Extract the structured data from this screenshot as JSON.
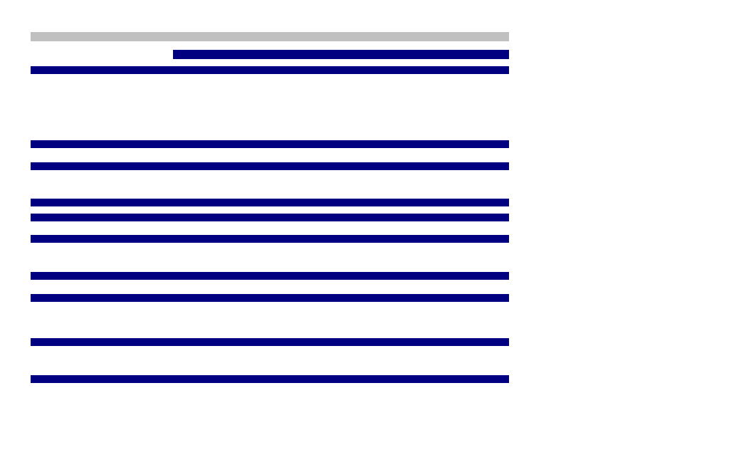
{
  "colors": {
    "header_bar": "#c0c0c0",
    "bar": "#000080",
    "background": "#ffffff"
  }
}
